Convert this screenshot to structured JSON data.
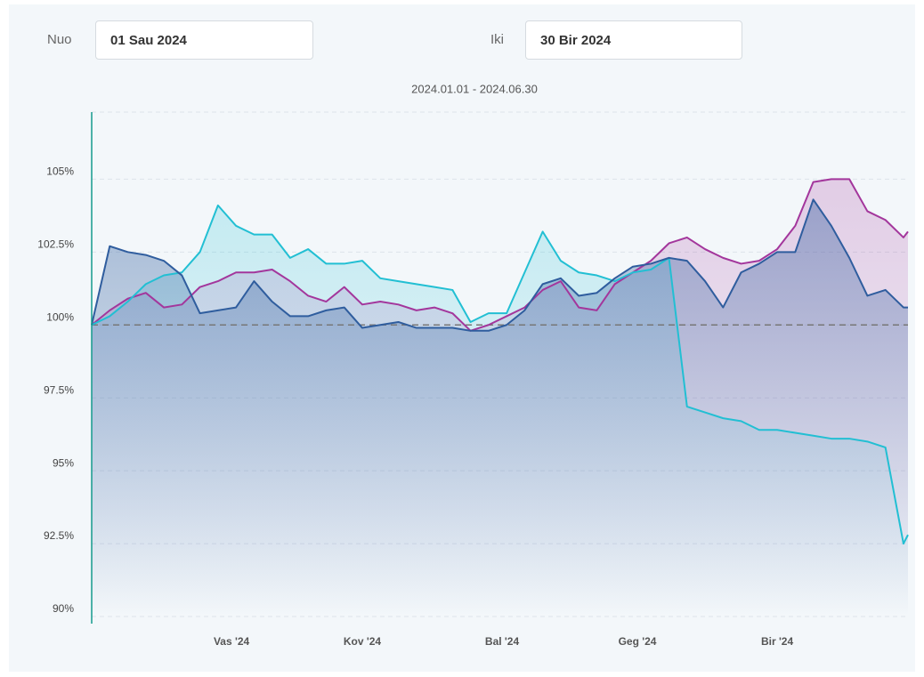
{
  "filters": {
    "from_label": "Nuo",
    "from_value": "01 Sau 2024",
    "to_label": "Iki",
    "to_value": "30 Bir 2024"
  },
  "chart_data": {
    "type": "line",
    "title": "2024.01.01 - 2024.06.30",
    "x": [
      0,
      4,
      8,
      12,
      16,
      20,
      24,
      28,
      32,
      36,
      40,
      44,
      48,
      52,
      56,
      60,
      64,
      68,
      72,
      76,
      80,
      84,
      88,
      92,
      96,
      100,
      104,
      108,
      112,
      116,
      120,
      124,
      128,
      132,
      136,
      140,
      144,
      148,
      152,
      156,
      160,
      164,
      168,
      172,
      176,
      180,
      181
    ],
    "xlim": [
      0,
      181
    ],
    "xticks": [
      {
        "value": 31,
        "label": "Vas '24"
      },
      {
        "value": 60,
        "label": "Kov '24"
      },
      {
        "value": 91,
        "label": "Bal '24"
      },
      {
        "value": 121,
        "label": "Geg '24"
      },
      {
        "value": 152,
        "label": "Bir '24"
      }
    ],
    "ylim": [
      90,
      107.3
    ],
    "yticks": [
      {
        "value": 90,
        "label": "90%"
      },
      {
        "value": 92.5,
        "label": "92.5%"
      },
      {
        "value": 95,
        "label": "95%"
      },
      {
        "value": 97.5,
        "label": "97.5%"
      },
      {
        "value": 100,
        "label": "100%"
      },
      {
        "value": 102.5,
        "label": "102.5%"
      },
      {
        "value": 105,
        "label": "105%"
      }
    ],
    "grid": true,
    "baseline": 100,
    "series": [
      {
        "color": "#a3369c",
        "values": [
          100,
          100.5,
          100.9,
          101.1,
          100.6,
          100.7,
          101.3,
          101.5,
          101.8,
          101.8,
          101.9,
          101.5,
          101.0,
          100.8,
          101.3,
          100.7,
          100.8,
          100.7,
          100.5,
          100.6,
          100.4,
          99.8,
          100.0,
          100.3,
          100.6,
          101.2,
          101.5,
          100.6,
          100.5,
          101.4,
          101.8,
          102.2,
          102.8,
          103.0,
          102.6,
          102.3,
          102.1,
          102.2,
          102.6,
          103.4,
          104.9,
          105.0,
          105.0,
          103.9,
          103.6,
          103.0,
          103.2
        ]
      },
      {
        "color": "#22bfd3",
        "values": [
          100,
          100.3,
          100.8,
          101.4,
          101.7,
          101.8,
          102.5,
          104.1,
          103.4,
          103.1,
          103.1,
          102.3,
          102.6,
          102.1,
          102.1,
          102.2,
          101.6,
          101.5,
          101.4,
          101.3,
          101.2,
          100.1,
          100.4,
          100.4,
          101.8,
          103.2,
          102.2,
          101.8,
          101.7,
          101.5,
          101.8,
          101.9,
          102.3,
          97.2,
          97.0,
          96.8,
          96.7,
          96.4,
          96.4,
          96.3,
          96.2,
          96.1,
          96.1,
          96.0,
          95.8,
          92.5,
          92.8
        ]
      },
      {
        "color": "#2f5d9e",
        "values": [
          100,
          102.7,
          102.5,
          102.4,
          102.2,
          101.7,
          100.4,
          100.5,
          100.6,
          101.5,
          100.8,
          100.3,
          100.3,
          100.5,
          100.6,
          99.9,
          100.0,
          100.1,
          99.9,
          99.9,
          99.9,
          99.8,
          99.8,
          100.0,
          100.5,
          101.4,
          101.6,
          101.0,
          101.1,
          101.6,
          102.0,
          102.1,
          102.3,
          102.2,
          101.5,
          100.6,
          101.8,
          102.1,
          102.5,
          102.5,
          104.3,
          103.4,
          102.3,
          101.0,
          101.2,
          100.6,
          100.6
        ]
      }
    ]
  }
}
